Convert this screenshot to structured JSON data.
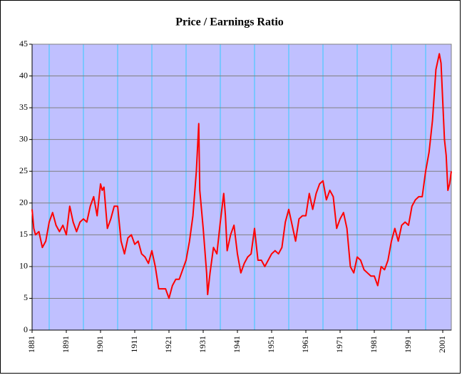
{
  "chart_data": {
    "type": "line",
    "title": "Price / Earnings Ratio",
    "x": [
      1881,
      1881.5,
      1882,
      1883,
      1884,
      1885,
      1886,
      1887,
      1888,
      1889,
      1890,
      1891,
      1892,
      1893,
      1894,
      1895,
      1896,
      1897,
      1898,
      1899,
      1900,
      1901,
      1901.5,
      1902,
      1903,
      1904,
      1905,
      1906,
      1907,
      1908,
      1909,
      1910,
      1911,
      1912,
      1913,
      1914,
      1915,
      1916,
      1917,
      1918,
      1919,
      1920,
      1921,
      1922,
      1923,
      1924,
      1925,
      1926,
      1927,
      1928,
      1929,
      1929.7,
      1930,
      1931,
      1932,
      1932.3,
      1933,
      1934,
      1935,
      1936,
      1937,
      1937.5,
      1938,
      1939,
      1940,
      1941,
      1942,
      1943,
      1944,
      1945,
      1946,
      1947,
      1948,
      1949,
      1950,
      1951,
      1952,
      1953,
      1954,
      1955,
      1956,
      1957,
      1958,
      1959,
      1960,
      1961,
      1962,
      1963,
      1964,
      1965,
      1966,
      1967,
      1968,
      1969,
      1970,
      1971,
      1972,
      1973,
      1974,
      1975,
      1976,
      1977,
      1978,
      1979,
      1980,
      1981,
      1982,
      1983,
      1984,
      1985,
      1986,
      1987,
      1988,
      1989,
      1990,
      1991,
      1992,
      1993,
      1994,
      1995,
      1996,
      1997,
      1998,
      1999,
      2000,
      2000.5,
      2001,
      2001.5,
      2002,
      2002.5,
      2003,
      2003.5
    ],
    "series": [
      {
        "color": "#ff0000",
        "values": [
          19,
          16,
          15,
          15.5,
          13,
          14,
          17,
          18.5,
          16.5,
          15.5,
          16.5,
          15,
          19.5,
          17,
          15.5,
          17,
          17.5,
          17,
          19.5,
          21,
          18,
          23,
          22,
          22.5,
          16,
          17.5,
          19.5,
          19.5,
          14,
          12,
          14.5,
          15,
          13.5,
          14,
          12,
          11.5,
          10.5,
          12.5,
          10,
          6.5,
          6.5,
          6.5,
          5,
          7,
          8,
          8,
          9.5,
          11,
          14,
          18,
          25,
          32.5,
          22,
          16,
          9,
          5.6,
          9,
          13,
          12,
          17,
          21.5,
          18,
          12.5,
          15,
          16.5,
          12,
          9,
          10.5,
          11.5,
          12,
          16,
          11,
          11,
          10,
          11,
          12,
          12.5,
          12,
          13,
          17,
          19,
          16.5,
          14,
          17.5,
          18,
          18,
          21.5,
          19,
          21.5,
          23,
          23.5,
          20.5,
          22,
          21,
          16,
          17.5,
          18.5,
          16,
          10,
          9,
          11.5,
          11,
          9.5,
          9,
          8.5,
          8.5,
          7,
          10,
          9.5,
          11,
          14,
          16,
          14,
          16.5,
          17,
          16.5,
          19.5,
          20.5,
          21,
          21,
          25,
          28,
          33,
          41,
          43.5,
          42,
          36,
          30,
          27.5,
          22,
          23,
          25
        ]
      }
    ],
    "xlim": [
      1881,
      2003.5
    ],
    "xticks": [
      1881,
      1891,
      1901,
      1911,
      1921,
      1931,
      1941,
      1951,
      1961,
      1971,
      1981,
      1991,
      2001
    ],
    "xgrid": [
      1886,
      1896,
      1906,
      1916,
      1926,
      1936,
      1946,
      1956,
      1966,
      1976,
      1986,
      1996
    ],
    "ylim": [
      0,
      45
    ],
    "yticks": [
      0,
      5,
      10,
      15,
      20,
      25,
      30,
      35,
      40,
      45
    ],
    "grid": true
  }
}
